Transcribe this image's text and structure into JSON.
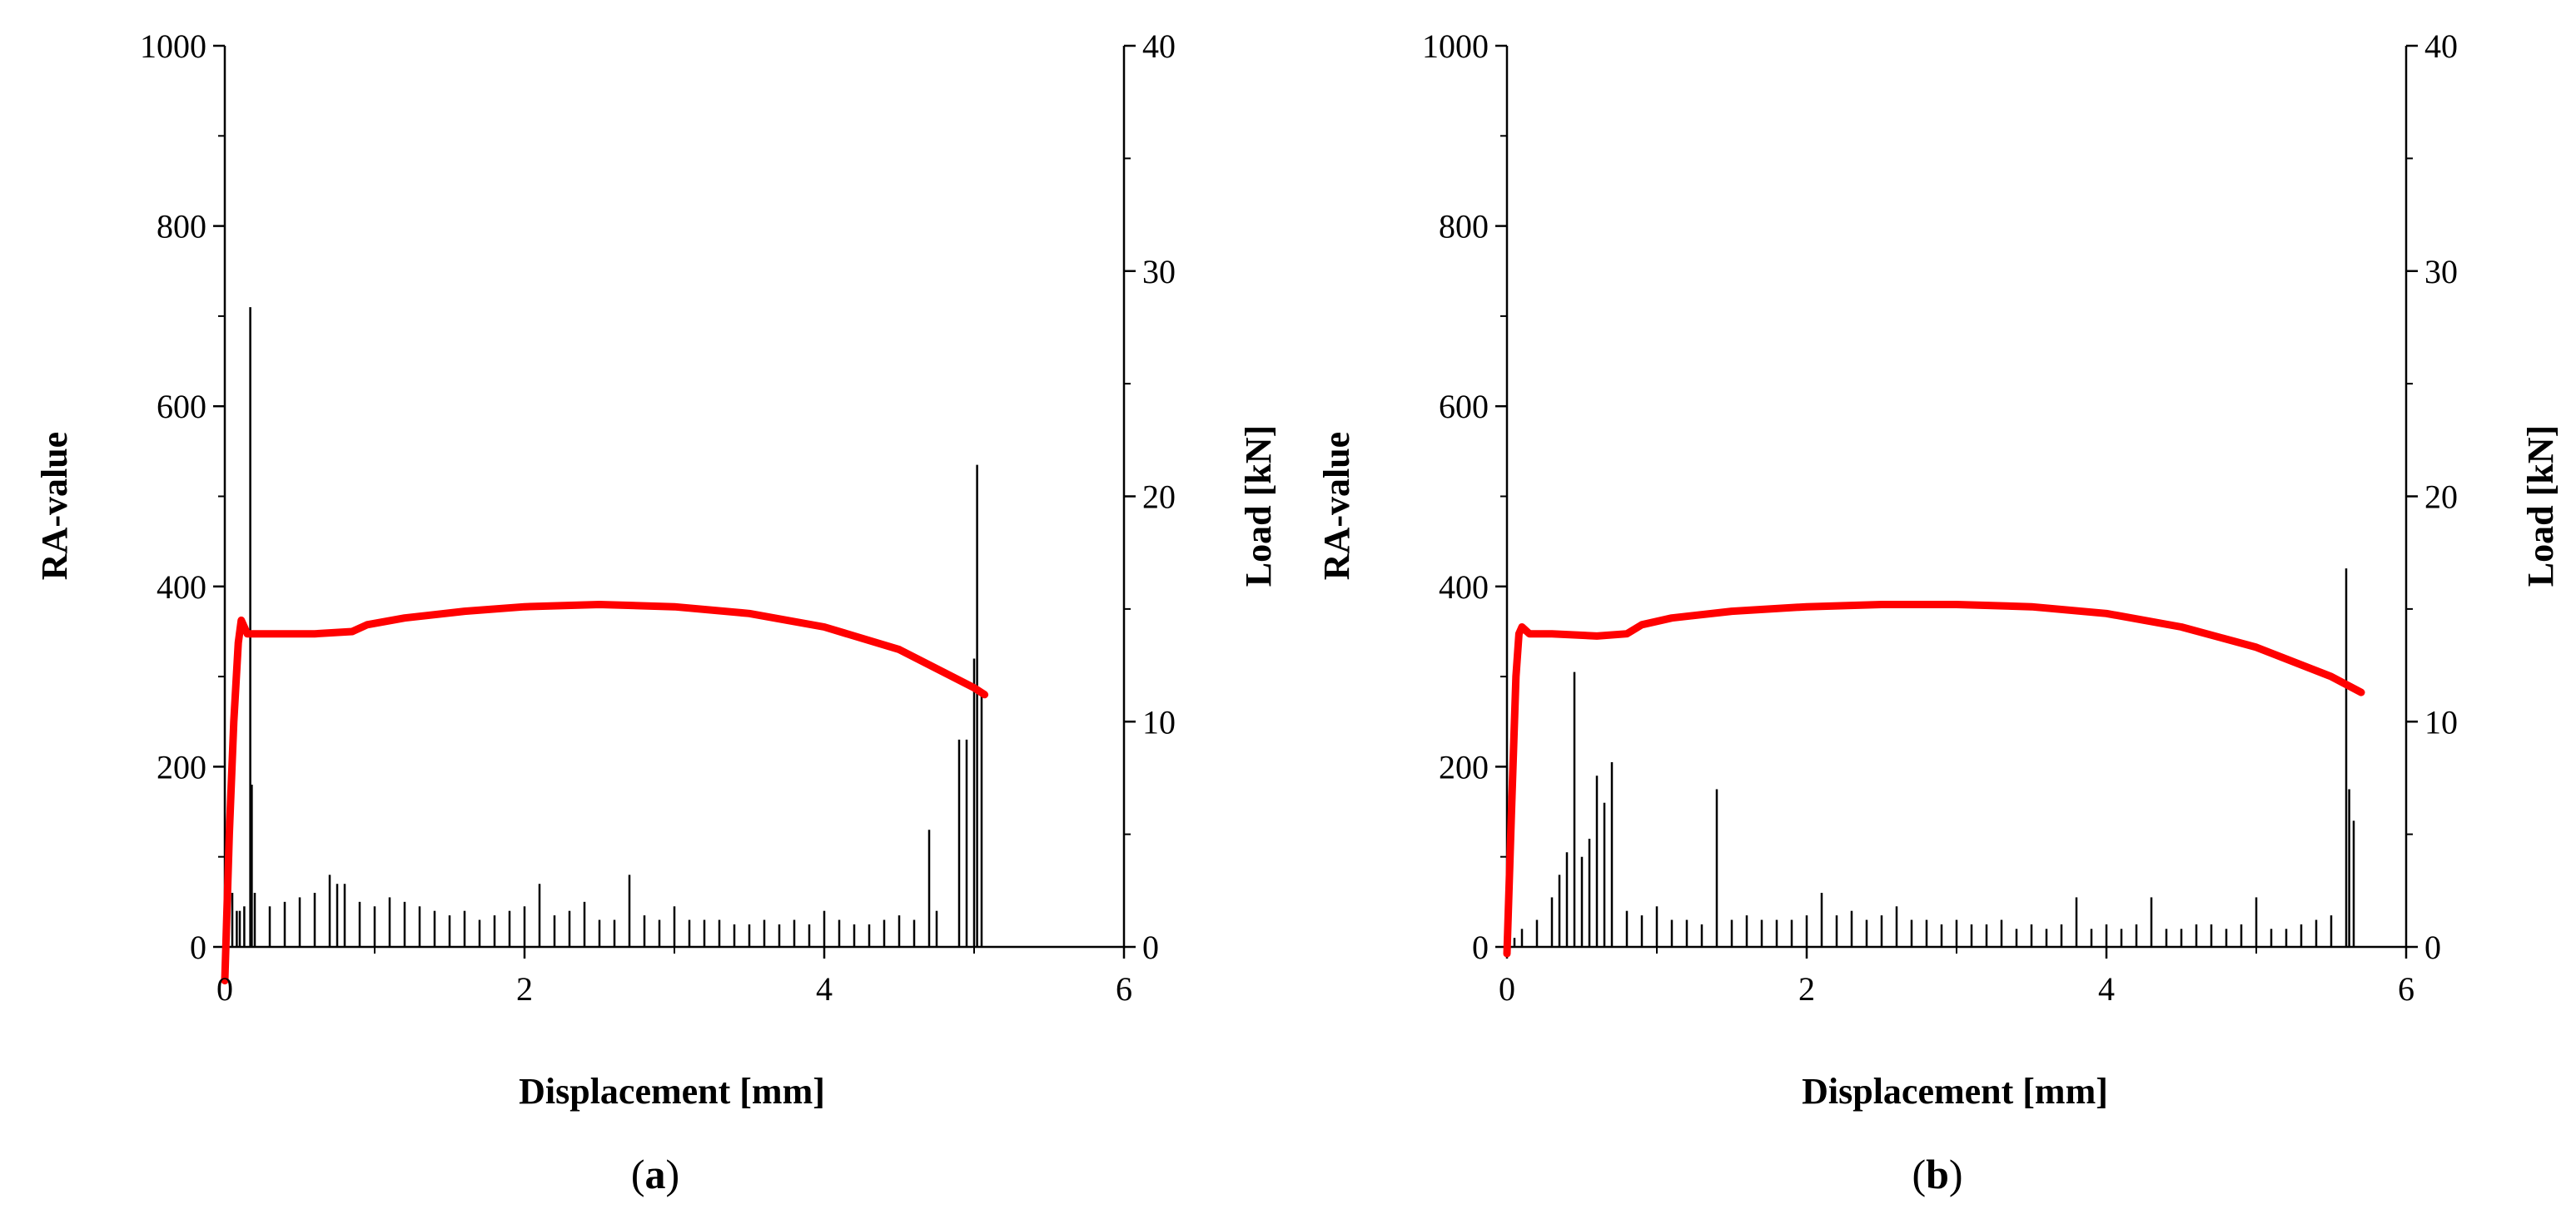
{
  "chart_data": [
    {
      "type": "line",
      "panel_label": "a",
      "xlabel": "Displacement [mm]",
      "ylabel_left": "RA-value",
      "ylabel_right": "Load [kN]",
      "xlim": [
        0,
        6
      ],
      "ylim_left": [
        0,
        1000
      ],
      "ylim_right": [
        0,
        40
      ],
      "x_ticks": [
        "0",
        "2",
        "4",
        "6"
      ],
      "y_left_ticks": [
        "0",
        "200",
        "400",
        "600",
        "800",
        "1000"
      ],
      "y_right_ticks": [
        "0",
        "10",
        "20",
        "30",
        "40"
      ],
      "grid": false,
      "colors": {
        "ra": "#000000",
        "load": "#ff0000"
      },
      "series": [
        {
          "axis": "left",
          "style": "spikes",
          "x": [
            0.0,
            0.02,
            0.05,
            0.08,
            0.1,
            0.13,
            0.17,
            0.18,
            0.2,
            0.3,
            0.4,
            0.5,
            0.6,
            0.7,
            0.75,
            0.8,
            0.9,
            1.0,
            1.1,
            1.2,
            1.3,
            1.4,
            1.5,
            1.6,
            1.7,
            1.8,
            1.9,
            2.0,
            2.1,
            2.2,
            2.3,
            2.4,
            2.5,
            2.6,
            2.7,
            2.8,
            2.9,
            3.0,
            3.1,
            3.2,
            3.3,
            3.4,
            3.5,
            3.6,
            3.7,
            3.8,
            3.9,
            4.0,
            4.1,
            4.2,
            4.3,
            4.4,
            4.5,
            4.6,
            4.7,
            4.75,
            4.9,
            4.95,
            5.0,
            5.02,
            5.05
          ],
          "values": [
            40,
            130,
            60,
            40,
            40,
            45,
            710,
            180,
            60,
            45,
            50,
            55,
            60,
            80,
            70,
            70,
            50,
            45,
            55,
            50,
            45,
            40,
            35,
            40,
            30,
            35,
            40,
            45,
            70,
            35,
            40,
            50,
            30,
            30,
            80,
            35,
            30,
            45,
            30,
            30,
            30,
            25,
            25,
            30,
            25,
            30,
            25,
            40,
            30,
            25,
            25,
            30,
            35,
            30,
            130,
            40,
            230,
            230,
            320,
            535,
            280
          ]
        },
        {
          "axis": "right",
          "style": "line",
          "x": [
            0.0,
            0.03,
            0.06,
            0.09,
            0.11,
            0.15,
            0.3,
            0.6,
            0.85,
            0.95,
            1.2,
            1.6,
            2.0,
            2.5,
            3.0,
            3.5,
            4.0,
            4.5,
            5.0,
            5.07
          ],
          "values": [
            -1.5,
            5.0,
            10.0,
            13.5,
            14.5,
            13.9,
            13.9,
            13.9,
            14.0,
            14.3,
            14.6,
            14.9,
            15.1,
            15.2,
            15.1,
            14.8,
            14.2,
            13.2,
            11.5,
            11.2
          ]
        }
      ]
    },
    {
      "type": "line",
      "panel_label": "b",
      "xlabel": "Displacement [mm]",
      "ylabel_left": "RA-value",
      "ylabel_right": "Load [kN]",
      "xlim": [
        0,
        6
      ],
      "ylim_left": [
        0,
        1000
      ],
      "ylim_right": [
        0,
        40
      ],
      "x_ticks": [
        "0",
        "2",
        "4",
        "6"
      ],
      "y_left_ticks": [
        "0",
        "200",
        "400",
        "600",
        "800",
        "1000"
      ],
      "y_right_ticks": [
        "0",
        "10",
        "20",
        "30",
        "40"
      ],
      "grid": false,
      "colors": {
        "ra": "#000000",
        "load": "#ff0000"
      },
      "series": [
        {
          "axis": "left",
          "style": "spikes",
          "x": [
            0.05,
            0.1,
            0.2,
            0.3,
            0.35,
            0.4,
            0.45,
            0.5,
            0.55,
            0.6,
            0.65,
            0.7,
            0.8,
            0.9,
            1.0,
            1.1,
            1.2,
            1.3,
            1.4,
            1.5,
            1.6,
            1.7,
            1.8,
            1.9,
            2.0,
            2.1,
            2.2,
            2.3,
            2.4,
            2.5,
            2.6,
            2.7,
            2.8,
            2.9,
            3.0,
            3.1,
            3.2,
            3.3,
            3.4,
            3.5,
            3.6,
            3.7,
            3.8,
            3.9,
            4.0,
            4.1,
            4.2,
            4.3,
            4.4,
            4.5,
            4.6,
            4.7,
            4.8,
            4.9,
            5.0,
            5.1,
            5.2,
            5.3,
            5.4,
            5.5,
            5.6,
            5.62,
            5.65
          ],
          "values": [
            10,
            20,
            30,
            55,
            80,
            105,
            305,
            100,
            120,
            190,
            160,
            205,
            40,
            35,
            45,
            30,
            30,
            25,
            175,
            30,
            35,
            30,
            30,
            30,
            35,
            60,
            35,
            40,
            30,
            35,
            45,
            30,
            30,
            25,
            30,
            25,
            25,
            30,
            20,
            25,
            20,
            25,
            55,
            20,
            25,
            20,
            25,
            55,
            20,
            20,
            25,
            25,
            20,
            25,
            55,
            20,
            20,
            25,
            30,
            35,
            420,
            175,
            140
          ]
        },
        {
          "axis": "right",
          "style": "line",
          "x": [
            0.0,
            0.03,
            0.06,
            0.08,
            0.1,
            0.15,
            0.3,
            0.6,
            0.8,
            0.9,
            1.1,
            1.5,
            2.0,
            2.5,
            3.0,
            3.5,
            4.0,
            4.5,
            5.0,
            5.5,
            5.7
          ],
          "values": [
            -0.3,
            6.0,
            12.0,
            13.9,
            14.2,
            13.9,
            13.9,
            13.8,
            13.9,
            14.3,
            14.6,
            14.9,
            15.1,
            15.2,
            15.2,
            15.1,
            14.8,
            14.2,
            13.3,
            12.0,
            11.3
          ]
        }
      ]
    }
  ]
}
